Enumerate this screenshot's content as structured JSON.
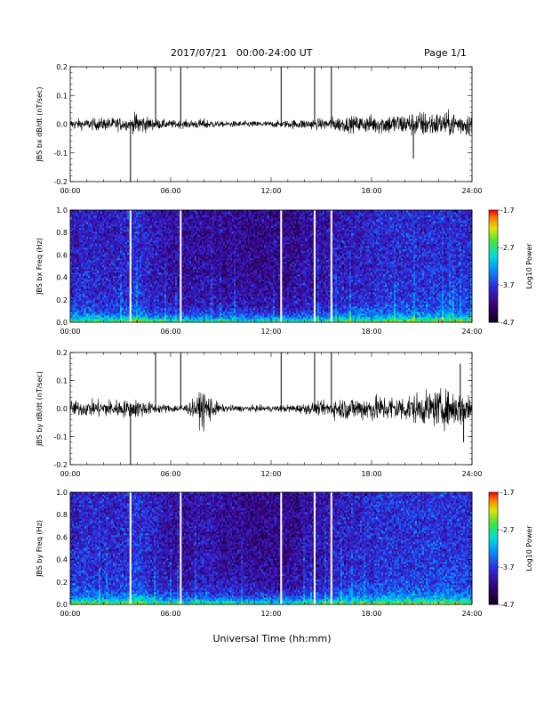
{
  "header": {
    "title": "2017/07/21   00:00-24:00 UT",
    "page": "Page 1/1"
  },
  "chart_data": [
    {
      "type": "line",
      "ylabel": "JBS bx dB/dt (nT/sec)",
      "xlim": [
        0,
        24
      ],
      "ylim": [
        -0.2,
        0.2
      ],
      "x_ticks": [
        "00:00",
        "06:00",
        "12:00",
        "18:00",
        "24:00"
      ],
      "y_ticks": [
        "-0.2",
        "-0.1",
        "0.0",
        "0.1",
        "0.2"
      ],
      "series": [
        {
          "x": [
            0,
            1,
            2,
            3,
            3.6,
            4,
            4.5,
            5,
            6,
            7,
            8,
            9,
            10,
            11,
            12,
            13,
            14,
            15,
            16,
            17,
            18,
            19,
            20,
            21,
            22,
            23,
            24
          ],
          "amplitude": [
            0.02,
            0.02,
            0.025,
            0.025,
            0.02,
            0.05,
            0.03,
            0.02,
            0.015,
            0.015,
            0.02,
            0.01,
            0.012,
            0.012,
            0.012,
            0.015,
            0.02,
            0.02,
            0.03,
            0.03,
            0.035,
            0.04,
            0.04,
            0.05,
            0.045,
            0.045,
            0.045
          ]
        }
      ],
      "spikes": [
        {
          "x": 3.6,
          "value": -0.2
        },
        {
          "x": 5.1,
          "value": 0.2
        },
        {
          "x": 6.6,
          "value": 0.2
        },
        {
          "x": 12.6,
          "value": 0.2
        },
        {
          "x": 14.6,
          "value": 0.2
        },
        {
          "x": 15.6,
          "value": 0.2
        },
        {
          "x": 20.5,
          "value": -0.12
        }
      ]
    },
    {
      "type": "heatmap",
      "ylabel": "JBS bx Freq (Hz)",
      "xlim": [
        0,
        24
      ],
      "ylim": [
        0.0,
        1.0
      ],
      "x_ticks": [
        "00:00",
        "06:00",
        "12:00",
        "18:00",
        "24:00"
      ],
      "y_ticks": [
        "0.0",
        "0.2",
        "0.4",
        "0.6",
        "0.8",
        "1.0"
      ],
      "colorbar": {
        "label": "Log10 Power",
        "range": [
          -4.7,
          -1.7
        ],
        "ticks": [
          "-1.7",
          "-2.7",
          "-3.7",
          "-4.7"
        ]
      },
      "gaps_x": [
        3.6,
        6.6,
        12.6,
        14.6,
        15.6
      ],
      "activity": [
        0.6,
        0.65,
        0.6,
        0.6,
        0.75,
        0.55,
        0.45,
        0.4,
        0.45,
        0.4,
        0.4,
        0.35,
        0.35,
        0.35,
        0.45,
        0.45,
        0.55,
        0.6,
        0.65,
        0.7,
        0.7,
        0.7,
        0.75,
        0.7,
        0.7
      ]
    },
    {
      "type": "line",
      "ylabel": "JBS by dB/dt (nT/sec)",
      "xlim": [
        0,
        24
      ],
      "ylim": [
        -0.2,
        0.2
      ],
      "x_ticks": [
        "00:00",
        "06:00",
        "12:00",
        "18:00",
        "24:00"
      ],
      "y_ticks": [
        "-0.2",
        "-0.1",
        "0.0",
        "0.1",
        "0.2"
      ],
      "series": [
        {
          "x": [
            0,
            1,
            2,
            3,
            3.6,
            4,
            4.5,
            5,
            6,
            7,
            7.5,
            8,
            8.5,
            9,
            10,
            11,
            12,
            13,
            14,
            15,
            16,
            17,
            18,
            19,
            20,
            21,
            22,
            23,
            24
          ],
          "amplitude": [
            0.03,
            0.03,
            0.035,
            0.035,
            0.03,
            0.04,
            0.03,
            0.02,
            0.015,
            0.02,
            0.04,
            0.08,
            0.04,
            0.015,
            0.012,
            0.012,
            0.012,
            0.015,
            0.02,
            0.025,
            0.04,
            0.045,
            0.05,
            0.05,
            0.05,
            0.06,
            0.07,
            0.07,
            0.06
          ]
        }
      ],
      "spikes": [
        {
          "x": 3.6,
          "value": -0.2
        },
        {
          "x": 5.1,
          "value": 0.2
        },
        {
          "x": 6.6,
          "value": 0.2
        },
        {
          "x": 12.6,
          "value": 0.2
        },
        {
          "x": 14.6,
          "value": 0.2
        },
        {
          "x": 15.6,
          "value": 0.2
        },
        {
          "x": 23.3,
          "value": 0.16
        },
        {
          "x": 23.5,
          "value": -0.12
        }
      ]
    },
    {
      "type": "heatmap",
      "ylabel": "JBS by Freq (Hz)",
      "xlim": [
        0,
        24
      ],
      "ylim": [
        0.0,
        1.0
      ],
      "x_ticks": [
        "00:00",
        "06:00",
        "12:00",
        "18:00",
        "24:00"
      ],
      "y_ticks": [
        "0.0",
        "0.2",
        "0.4",
        "0.6",
        "0.8",
        "1.0"
      ],
      "colorbar": {
        "label": "Log10 Power",
        "range": [
          -4.7,
          -1.7
        ],
        "ticks": [
          "-1.7",
          "-2.7",
          "-3.7",
          "-4.7"
        ]
      },
      "gaps_x": [
        3.6,
        6.6,
        12.6,
        14.6,
        15.6
      ],
      "activity": [
        0.65,
        0.7,
        0.65,
        0.65,
        0.8,
        0.6,
        0.45,
        0.4,
        0.55,
        0.45,
        0.4,
        0.35,
        0.35,
        0.35,
        0.45,
        0.5,
        0.6,
        0.65,
        0.7,
        0.75,
        0.75,
        0.75,
        0.8,
        0.75,
        0.75
      ]
    }
  ],
  "xlabel": "Universal Time (hh:mm)"
}
